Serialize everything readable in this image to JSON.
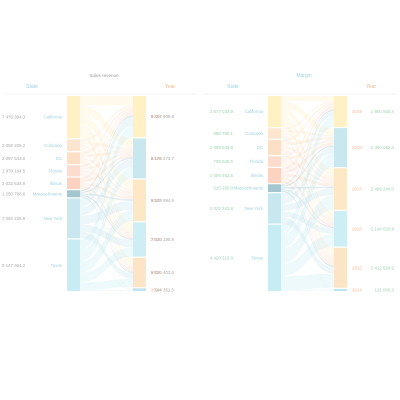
{
  "colors": {
    "state_header": "#9ed3de",
    "year_header": "#f0b68d",
    "panel_title": "#9a9a9a",
    "margin_title": "#9ed3de",
    "state_text": "#9ed3de",
    "value_text": "#a8a8a8",
    "year_text": "#f4b79a",
    "green_text": "#9bd3b0",
    "states": {
      "California": "#fff1c4",
      "Colorado": "#fde5cf",
      "DC": "#fbe0c6",
      "Florida": "#fcdccc",
      "Illinois": "#fcd2c0",
      "Massachusetts": "#a4c7cf",
      "New York": "#c8e7ef",
      "Texas": "#c7ecf4"
    },
    "years": {
      "2019": "#fff1c4",
      "2018": "#c8e7ef",
      "2017": "#fde8c6",
      "2016": "#cdeef5",
      "2015": "#fbe5c6",
      "2014": "#bfe4ee"
    }
  },
  "chart_data": [
    {
      "type": "sankey",
      "title": "Sales revenue",
      "left_header": "State",
      "right_header": "Year",
      "states": [
        {
          "name": "California",
          "label": "7 476 394.3"
        },
        {
          "name": "Colorado",
          "label": "2 082 225.2"
        },
        {
          "name": "DC",
          "label": "2 097 543.0"
        },
        {
          "name": "Florida",
          "label": "1 979 164.5"
        },
        {
          "name": "Illinois",
          "label": "2 022 634.8"
        },
        {
          "name": "Massachusetts",
          "label": "1 250 708.6"
        },
        {
          "name": "New York",
          "label": "7 062 225.9"
        },
        {
          "name": "Texas",
          "label": "9 147 664.2"
        }
      ],
      "years": [
        {
          "name": "2019",
          "label": "8 457 908.8"
        },
        {
          "name": "2018",
          "label": "8 178 273.7"
        },
        {
          "name": "2017",
          "label": "8 539 594.9"
        },
        {
          "name": "2016",
          "label": "7 020 190.8"
        },
        {
          "name": "2015",
          "label": "6 020 403.6"
        },
        {
          "name": "2014",
          "label": "544 351.5"
        }
      ]
    },
    {
      "type": "sankey",
      "title": "Margin",
      "left_header": "State",
      "right_header": "Year",
      "states": [
        {
          "name": "California",
          "label": "2 077 033.9"
        },
        {
          "name": "Colorado",
          "label": "690 790.1"
        },
        {
          "name": "DC",
          "label": "1 008 043.8"
        },
        {
          "name": "Florida",
          "label": "705 045.5"
        },
        {
          "name": "Illinois",
          "label": "1 006 462.5"
        },
        {
          "name": "Massachusetts",
          "label": "515 250.0"
        },
        {
          "name": "New York",
          "label": "2 022 342.8"
        },
        {
          "name": "Texas",
          "label": "4 420 313.0"
        }
      ],
      "years": [
        {
          "name": "2019",
          "label": "1 860 565.4"
        },
        {
          "name": "2018",
          "label": "2 350 062.4"
        },
        {
          "name": "2017",
          "label": "2 496 244.0"
        },
        {
          "name": "2016",
          "label": "2 144 520.8"
        },
        {
          "name": "2015",
          "label": "2 412 524.9"
        },
        {
          "name": "2014",
          "label": "121 005.3"
        }
      ]
    }
  ]
}
